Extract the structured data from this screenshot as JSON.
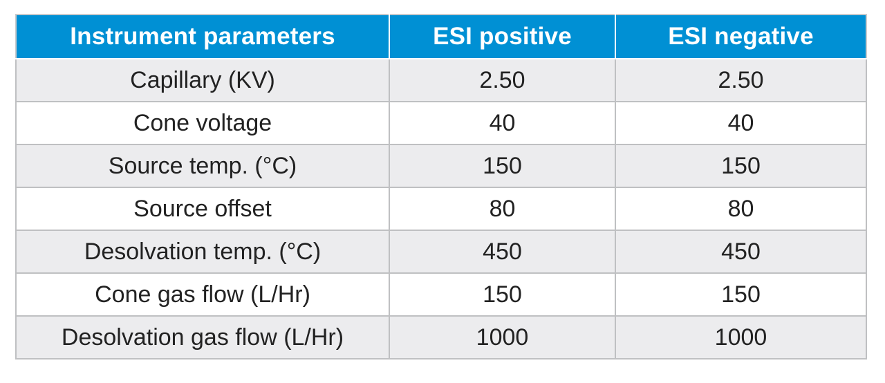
{
  "table": {
    "headers": [
      "Instrument parameters",
      "ESI positive",
      "ESI negative"
    ],
    "rows": [
      [
        "Capillary (KV)",
        "2.50",
        "2.50"
      ],
      [
        "Cone voltage",
        "40",
        "40"
      ],
      [
        "Source temp. (°C)",
        "150",
        "150"
      ],
      [
        "Source offset",
        "80",
        "80"
      ],
      [
        "Desolvation temp. (°C)",
        "450",
        "450"
      ],
      [
        "Cone gas flow (L/Hr)",
        "150",
        "150"
      ],
      [
        "Desolvation gas flow (L/Hr)",
        "1000",
        "1000"
      ]
    ]
  },
  "colors": {
    "header_bg": "#0090d4",
    "header_text": "#ffffff",
    "row_alt_bg": "#ececee",
    "border": "#bfc0c2"
  }
}
